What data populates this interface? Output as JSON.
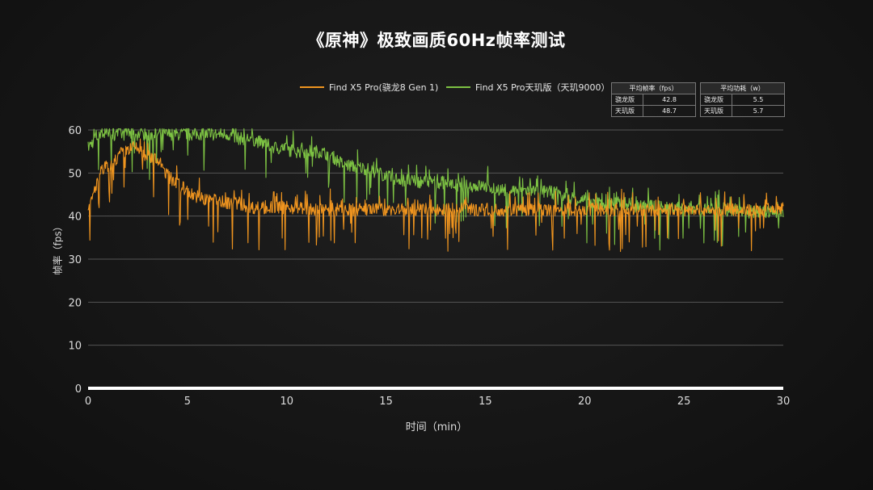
{
  "chart_data": {
    "type": "line",
    "title": "《原神》极致画质60Hz帧率测试",
    "xlabel": "时间（min）",
    "ylabel": "帧率（fps）",
    "xlim": [
      0,
      30
    ],
    "ylim": [
      0,
      60
    ],
    "x_ticks": [
      "0",
      "5",
      "10",
      "15",
      "15",
      "20",
      "25",
      "30"
    ],
    "y_ticks": [
      "0",
      "10",
      "20",
      "30",
      "40",
      "50",
      "60"
    ],
    "grid": "horizontal",
    "legend_position": "top",
    "series": [
      {
        "name": "Find X5 Pro(骁龙8 Gen 1)",
        "color": "#f0951f",
        "points": [
          [
            0,
            41
          ],
          [
            0.5,
            50
          ],
          [
            1,
            52
          ],
          [
            1.5,
            55
          ],
          [
            2,
            56
          ],
          [
            2.5,
            54
          ],
          [
            3,
            53
          ],
          [
            3.5,
            49
          ],
          [
            4,
            47
          ],
          [
            4.5,
            45
          ],
          [
            5,
            44
          ],
          [
            5.5,
            44
          ],
          [
            6,
            43
          ],
          [
            6.5,
            43
          ],
          [
            7,
            42
          ],
          [
            8,
            42
          ],
          [
            9,
            42
          ],
          [
            10,
            41.5
          ],
          [
            11,
            41.5
          ],
          [
            12,
            41.5
          ],
          [
            13,
            41.5
          ],
          [
            14,
            41.5
          ],
          [
            15,
            41.5
          ],
          [
            16,
            41.5
          ],
          [
            17,
            41.5
          ],
          [
            18,
            41.5
          ],
          [
            19,
            41.5
          ],
          [
            20,
            41.5
          ],
          [
            21,
            41.5
          ],
          [
            22,
            41.5
          ],
          [
            23,
            41.5
          ],
          [
            24,
            41.5
          ],
          [
            25,
            41.5
          ],
          [
            26,
            41.5
          ],
          [
            27,
            41.5
          ],
          [
            28,
            41.5
          ],
          [
            29,
            41.5
          ],
          [
            30,
            41.5
          ]
        ]
      },
      {
        "name": "Find X5 Pro天玑版（天玑9000）",
        "color": "#7dc243",
        "points": [
          [
            0,
            56
          ],
          [
            0.5,
            59
          ],
          [
            1,
            59
          ],
          [
            2,
            59
          ],
          [
            3,
            59
          ],
          [
            4,
            59
          ],
          [
            5,
            59
          ],
          [
            6,
            59
          ],
          [
            6.5,
            58
          ],
          [
            7,
            58
          ],
          [
            7.5,
            57
          ],
          [
            8,
            56
          ],
          [
            9,
            55
          ],
          [
            10,
            55
          ],
          [
            10.5,
            54
          ],
          [
            11,
            52
          ],
          [
            12,
            51
          ],
          [
            13,
            49
          ],
          [
            14,
            48
          ],
          [
            15,
            48
          ],
          [
            16,
            47
          ],
          [
            17,
            47
          ],
          [
            18,
            46
          ],
          [
            19,
            46
          ],
          [
            20,
            45.5
          ],
          [
            21,
            44
          ],
          [
            22,
            43
          ],
          [
            23,
            43
          ],
          [
            24,
            42.5
          ],
          [
            25,
            42
          ],
          [
            26,
            42
          ],
          [
            27,
            41.5
          ],
          [
            28,
            41
          ],
          [
            29,
            41
          ],
          [
            30,
            41
          ]
        ]
      }
    ],
    "stats_tables": [
      {
        "header": "平均帧率（fps）",
        "rows": [
          [
            "骁龙版",
            "42.8"
          ],
          [
            "天玑版",
            "48.7"
          ]
        ]
      },
      {
        "header": "平均功耗（w）",
        "rows": [
          [
            "骁龙版",
            "5.5"
          ],
          [
            "天玑版",
            "5.7"
          ]
        ]
      }
    ]
  }
}
